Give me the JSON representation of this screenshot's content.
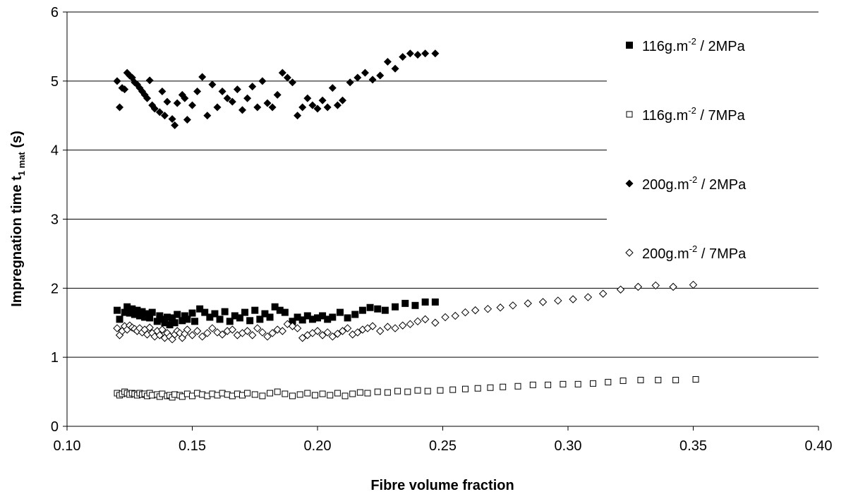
{
  "chart_data": {
    "type": "scatter",
    "xlabel": "Fibre volume fraction",
    "ylabel": {
      "main": "Impregnation time t",
      "sub": "1 mat",
      "unit": " (s)"
    },
    "xlim": [
      0.1,
      0.4
    ],
    "ylim": [
      0,
      6
    ],
    "xticks": [
      "0.10",
      "0.15",
      "0.20",
      "0.25",
      "0.30",
      "0.35",
      "0.40"
    ],
    "yticks": [
      "0",
      "1",
      "2",
      "3",
      "4",
      "5",
      "6"
    ],
    "grid": "horizontal",
    "legend_position": "top-right",
    "series": [
      {
        "label": {
          "base": "116g.m",
          "sup": "-2",
          "tail": " / 2MPa"
        },
        "marker": "filled-square",
        "x": [
          0.12,
          0.121,
          0.123,
          0.124,
          0.125,
          0.126,
          0.127,
          0.128,
          0.129,
          0.13,
          0.131,
          0.132,
          0.133,
          0.134,
          0.136,
          0.137,
          0.138,
          0.139,
          0.14,
          0.141,
          0.142,
          0.143,
          0.144,
          0.146,
          0.147,
          0.148,
          0.15,
          0.151,
          0.153,
          0.155,
          0.157,
          0.159,
          0.161,
          0.163,
          0.165,
          0.167,
          0.169,
          0.171,
          0.173,
          0.175,
          0.177,
          0.179,
          0.181,
          0.183,
          0.185,
          0.187,
          0.19,
          0.192,
          0.194,
          0.196,
          0.198,
          0.2,
          0.202,
          0.204,
          0.206,
          0.209,
          0.212,
          0.215,
          0.218,
          0.221,
          0.224,
          0.227,
          0.231,
          0.235,
          0.239,
          0.243,
          0.247
        ],
        "y": [
          1.68,
          1.55,
          1.65,
          1.73,
          1.64,
          1.7,
          1.62,
          1.68,
          1.6,
          1.66,
          1.58,
          1.63,
          1.57,
          1.65,
          1.52,
          1.6,
          1.55,
          1.5,
          1.58,
          1.47,
          1.57,
          1.5,
          1.62,
          1.53,
          1.6,
          1.55,
          1.64,
          1.52,
          1.7,
          1.65,
          1.58,
          1.63,
          1.55,
          1.66,
          1.52,
          1.6,
          1.57,
          1.65,
          1.53,
          1.68,
          1.55,
          1.63,
          1.58,
          1.73,
          1.68,
          1.65,
          1.52,
          1.58,
          1.54,
          1.6,
          1.55,
          1.57,
          1.6,
          1.55,
          1.58,
          1.65,
          1.57,
          1.62,
          1.68,
          1.72,
          1.7,
          1.68,
          1.73,
          1.78,
          1.75,
          1.8,
          1.8
        ]
      },
      {
        "label": {
          "base": "116g.m",
          "sup": "-2",
          "tail": " / 7MPa"
        },
        "marker": "open-square",
        "x": [
          0.12,
          0.121,
          0.122,
          0.123,
          0.124,
          0.125,
          0.126,
          0.127,
          0.128,
          0.129,
          0.13,
          0.131,
          0.132,
          0.133,
          0.134,
          0.136,
          0.137,
          0.138,
          0.14,
          0.141,
          0.142,
          0.143,
          0.145,
          0.146,
          0.148,
          0.15,
          0.152,
          0.154,
          0.156,
          0.158,
          0.16,
          0.162,
          0.164,
          0.166,
          0.168,
          0.17,
          0.172,
          0.175,
          0.178,
          0.181,
          0.184,
          0.187,
          0.19,
          0.193,
          0.196,
          0.199,
          0.202,
          0.205,
          0.208,
          0.211,
          0.214,
          0.217,
          0.22,
          0.224,
          0.228,
          0.232,
          0.236,
          0.24,
          0.244,
          0.249,
          0.254,
          0.259,
          0.264,
          0.269,
          0.274,
          0.28,
          0.286,
          0.292,
          0.298,
          0.304,
          0.31,
          0.316,
          0.322,
          0.329,
          0.336,
          0.343,
          0.351
        ],
        "y": [
          0.48,
          0.45,
          0.47,
          0.5,
          0.48,
          0.46,
          0.48,
          0.47,
          0.45,
          0.48,
          0.46,
          0.47,
          0.44,
          0.48,
          0.45,
          0.46,
          0.43,
          0.47,
          0.44,
          0.45,
          0.42,
          0.46,
          0.45,
          0.43,
          0.47,
          0.44,
          0.48,
          0.46,
          0.44,
          0.47,
          0.45,
          0.48,
          0.46,
          0.44,
          0.47,
          0.45,
          0.48,
          0.46,
          0.44,
          0.48,
          0.5,
          0.47,
          0.44,
          0.46,
          0.48,
          0.45,
          0.47,
          0.45,
          0.48,
          0.44,
          0.47,
          0.49,
          0.48,
          0.5,
          0.49,
          0.51,
          0.5,
          0.52,
          0.51,
          0.52,
          0.53,
          0.54,
          0.55,
          0.56,
          0.57,
          0.58,
          0.6,
          0.6,
          0.61,
          0.61,
          0.62,
          0.64,
          0.66,
          0.67,
          0.67,
          0.67,
          0.68
        ]
      },
      {
        "label": {
          "base": "200g.m",
          "sup": "-2",
          "tail": " / 2MPa"
        },
        "marker": "filled-diamond",
        "x": [
          0.12,
          0.121,
          0.122,
          0.123,
          0.124,
          0.125,
          0.126,
          0.127,
          0.128,
          0.129,
          0.13,
          0.131,
          0.132,
          0.133,
          0.134,
          0.135,
          0.137,
          0.138,
          0.139,
          0.14,
          0.142,
          0.143,
          0.144,
          0.146,
          0.147,
          0.148,
          0.15,
          0.152,
          0.154,
          0.156,
          0.158,
          0.16,
          0.162,
          0.164,
          0.166,
          0.168,
          0.17,
          0.172,
          0.174,
          0.176,
          0.178,
          0.18,
          0.182,
          0.184,
          0.186,
          0.188,
          0.19,
          0.192,
          0.194,
          0.196,
          0.198,
          0.2,
          0.202,
          0.204,
          0.206,
          0.208,
          0.21,
          0.213,
          0.216,
          0.219,
          0.222,
          0.225,
          0.228,
          0.231,
          0.234,
          0.237,
          0.24,
          0.243,
          0.247
        ],
        "y": [
          5.0,
          4.62,
          4.9,
          4.88,
          5.12,
          5.08,
          5.05,
          4.98,
          4.95,
          4.9,
          4.85,
          4.8,
          4.75,
          5.01,
          4.65,
          4.6,
          4.55,
          4.85,
          4.5,
          4.7,
          4.45,
          4.36,
          4.68,
          4.8,
          4.75,
          4.44,
          4.65,
          4.85,
          5.06,
          4.5,
          4.95,
          4.62,
          4.85,
          4.75,
          4.7,
          4.88,
          4.58,
          4.75,
          4.92,
          4.62,
          5.0,
          4.68,
          4.62,
          4.8,
          5.12,
          5.05,
          4.98,
          4.5,
          4.62,
          4.75,
          4.65,
          4.6,
          4.72,
          4.62,
          4.9,
          4.65,
          4.72,
          4.98,
          5.05,
          5.12,
          5.02,
          5.08,
          5.28,
          5.18,
          5.35,
          5.4,
          5.38,
          5.4,
          5.4
        ]
      },
      {
        "label": {
          "base": "200g.m",
          "sup": "-2",
          "tail": " / 7MPa"
        },
        "marker": "open-diamond",
        "x": [
          0.12,
          0.121,
          0.122,
          0.123,
          0.124,
          0.125,
          0.126,
          0.127,
          0.128,
          0.129,
          0.13,
          0.131,
          0.132,
          0.133,
          0.134,
          0.135,
          0.136,
          0.137,
          0.138,
          0.139,
          0.14,
          0.141,
          0.142,
          0.143,
          0.144,
          0.145,
          0.146,
          0.147,
          0.148,
          0.15,
          0.152,
          0.154,
          0.156,
          0.158,
          0.16,
          0.162,
          0.164,
          0.166,
          0.168,
          0.17,
          0.172,
          0.174,
          0.176,
          0.178,
          0.18,
          0.182,
          0.184,
          0.186,
          0.188,
          0.19,
          0.192,
          0.194,
          0.196,
          0.198,
          0.2,
          0.202,
          0.204,
          0.206,
          0.208,
          0.21,
          0.212,
          0.214,
          0.216,
          0.218,
          0.22,
          0.222,
          0.225,
          0.228,
          0.231,
          0.234,
          0.237,
          0.24,
          0.243,
          0.247,
          0.251,
          0.255,
          0.259,
          0.263,
          0.268,
          0.273,
          0.278,
          0.284,
          0.29,
          0.296,
          0.302,
          0.308,
          0.314,
          0.321,
          0.328,
          0.335,
          0.342,
          0.35
        ],
        "y": [
          1.42,
          1.32,
          1.38,
          1.45,
          1.4,
          1.46,
          1.43,
          1.41,
          1.38,
          1.42,
          1.36,
          1.4,
          1.33,
          1.43,
          1.35,
          1.3,
          1.38,
          1.32,
          1.4,
          1.28,
          1.35,
          1.3,
          1.26,
          1.33,
          1.38,
          1.35,
          1.28,
          1.34,
          1.4,
          1.32,
          1.38,
          1.3,
          1.35,
          1.42,
          1.36,
          1.33,
          1.38,
          1.4,
          1.32,
          1.35,
          1.38,
          1.32,
          1.42,
          1.36,
          1.3,
          1.35,
          1.4,
          1.38,
          1.48,
          1.45,
          1.42,
          1.28,
          1.32,
          1.35,
          1.38,
          1.32,
          1.36,
          1.3,
          1.34,
          1.38,
          1.42,
          1.33,
          1.36,
          1.4,
          1.42,
          1.45,
          1.38,
          1.44,
          1.42,
          1.46,
          1.48,
          1.52,
          1.55,
          1.5,
          1.58,
          1.6,
          1.65,
          1.68,
          1.7,
          1.72,
          1.75,
          1.78,
          1.8,
          1.82,
          1.84,
          1.87,
          1.92,
          1.98,
          2.02,
          2.04,
          2.02,
          2.05
        ]
      }
    ]
  }
}
